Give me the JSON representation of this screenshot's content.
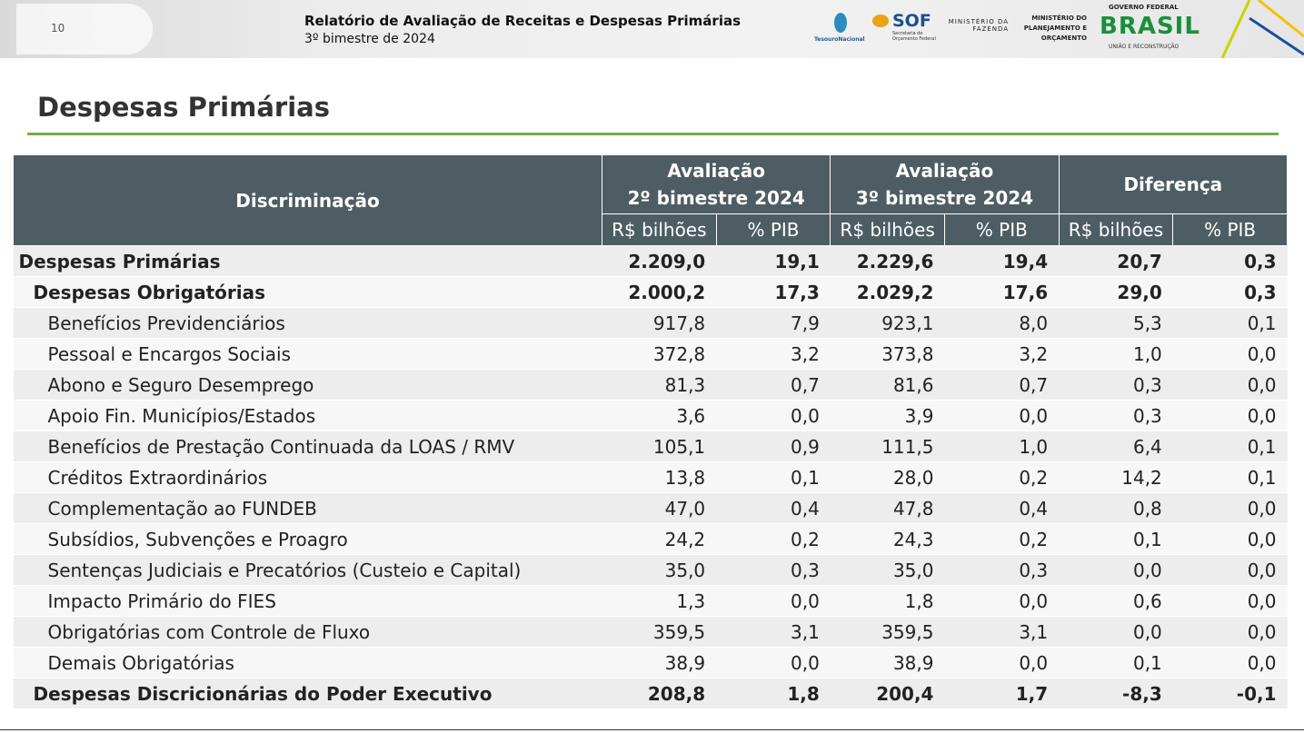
{
  "header": {
    "page": "10",
    "title": "Relatório de Avaliação de Receitas e Despesas Primárias",
    "subtitle": "3º bimestre de 2024",
    "logos": {
      "tesouro": "TesouroNacional",
      "sof": "SOF",
      "sof_sub": "Secretaria de Orçamento Federal",
      "fazenda": "MINISTÉRIO DA FAZENDA",
      "planejamento": "MINISTÉRIO DO PLANEJAMENTO E ORÇAMENTO",
      "governo": "GOVERNO FEDERAL",
      "brasil": "BRASIL",
      "slogan": "UNIÃO E RECONSTRUÇÃO"
    }
  },
  "section_title": "Despesas Primárias",
  "table": {
    "first_header": "Discriminação",
    "groups": [
      "Avaliação\n2º bimestre 2024",
      "Avaliação\n3º bimestre 2024",
      "Diferença"
    ],
    "subheaders": [
      "R$ bilhões",
      "% PIB",
      "R$ bilhões",
      "% PIB",
      "R$ bilhões",
      "% PIB"
    ],
    "rows": [
      [
        "Despesas Primárias",
        "2.209,0",
        "19,1",
        "2.229,6",
        "19,4",
        "20,7",
        "0,3"
      ],
      [
        "Despesas Obrigatórias",
        "2.000,2",
        "17,3",
        "2.029,2",
        "17,6",
        "29,0",
        "0,3"
      ],
      [
        "Benefícios Previdenciários",
        "917,8",
        "7,9",
        "923,1",
        "8,0",
        "5,3",
        "0,1"
      ],
      [
        "Pessoal e Encargos Sociais",
        "372,8",
        "3,2",
        "373,8",
        "3,2",
        "1,0",
        "0,0"
      ],
      [
        "Abono e Seguro Desemprego",
        "81,3",
        "0,7",
        "81,6",
        "0,7",
        "0,3",
        "0,0"
      ],
      [
        "Apoio Fin. Municípios/Estados",
        "3,6",
        "0,0",
        "3,9",
        "0,0",
        "0,3",
        "0,0"
      ],
      [
        "Benefícios de Prestação Continuada da LOAS / RMV",
        "105,1",
        "0,9",
        "111,5",
        "1,0",
        "6,4",
        "0,1"
      ],
      [
        "Créditos Extraordinários",
        "13,8",
        "0,1",
        "28,0",
        "0,2",
        "14,2",
        "0,1"
      ],
      [
        "Complementação ao FUNDEB",
        "47,0",
        "0,4",
        "47,8",
        "0,4",
        "0,8",
        "0,0"
      ],
      [
        "Subsídios, Subvenções e Proagro",
        "24,2",
        "0,2",
        "24,3",
        "0,2",
        "0,1",
        "0,0"
      ],
      [
        "Sentenças Judiciais e Precatórios (Custeio e Capital)",
        "35,0",
        "0,3",
        "35,0",
        "0,3",
        "0,0",
        "0,0"
      ],
      [
        "Impacto Primário do FIES",
        "1,3",
        "0,0",
        "1,8",
        "0,0",
        "0,6",
        "0,0"
      ],
      [
        "Obrigatórias com Controle de Fluxo",
        "359,5",
        "3,1",
        "359,5",
        "3,1",
        "0,0",
        "0,0"
      ],
      [
        "Demais Obrigatórias",
        "38,9",
        "0,0",
        "38,9",
        "0,0",
        "0,1",
        "0,0"
      ],
      [
        "Despesas Discricionárias do Poder Executivo",
        "208,8",
        "1,8",
        "200,4",
        "1,7",
        "-8,3",
        "-0,1"
      ]
    ]
  }
}
